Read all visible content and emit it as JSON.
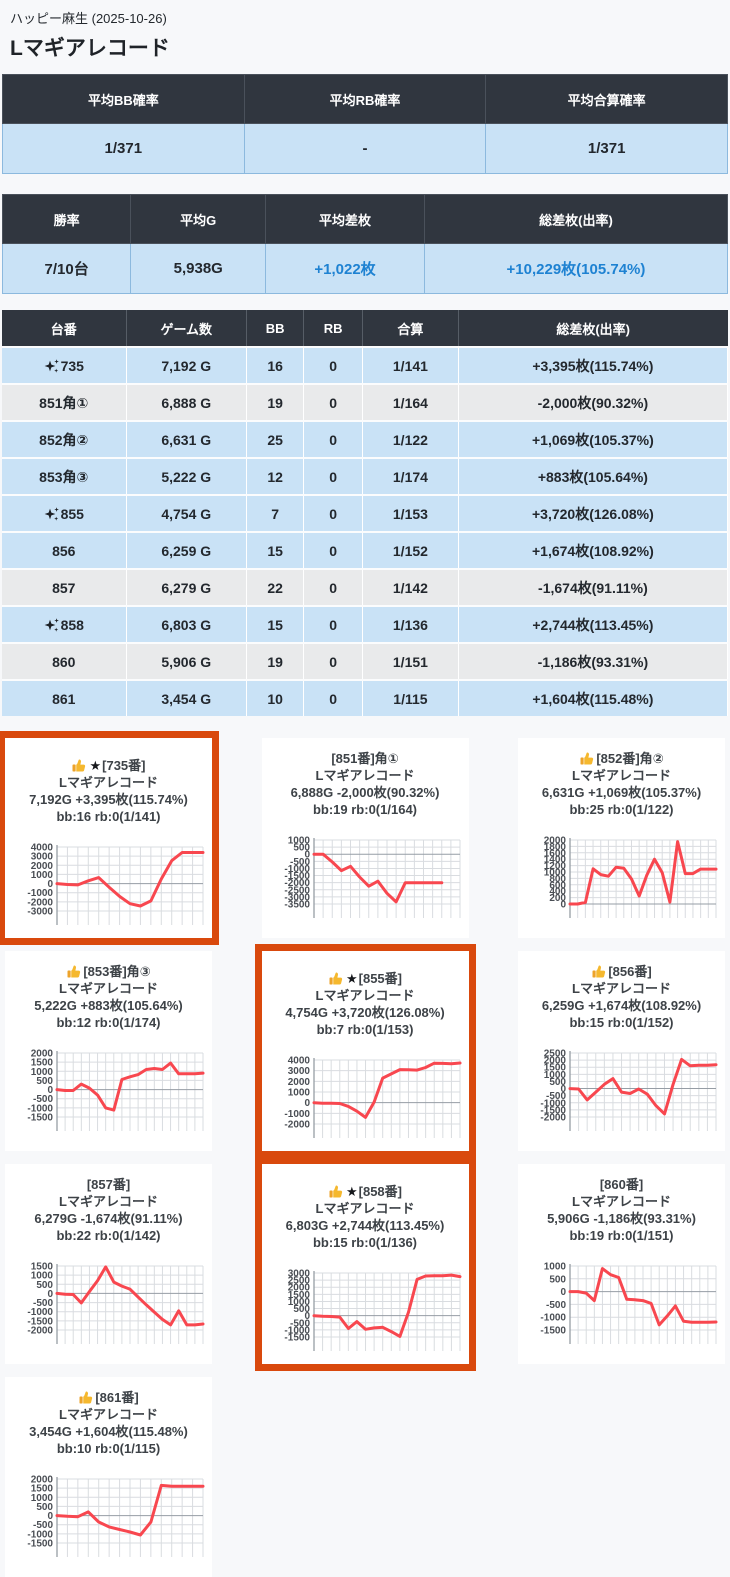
{
  "page": {
    "hall_line": "ハッピー麻生 (2025-10-26)",
    "title": "Lマギアレコード"
  },
  "icons": {
    "sparkle-icon": "✨",
    "thumbs-up-icon": "👍",
    "star-icon": "★"
  },
  "colors": {
    "header_bg": "#30363f",
    "blue_row": "#c9e2f6",
    "gray_row": "#e9eaeb",
    "blue_text": "#1e82d2",
    "highlight_border": "#d9490d",
    "chart_line": "#f8474f"
  },
  "summary_bb": {
    "headers": [
      "平均BB確率",
      "平均RB確率",
      "平均合算確率"
    ],
    "values": [
      "1/371",
      "-",
      "1/371"
    ]
  },
  "summary_overall": {
    "headers": [
      "勝率",
      "平均G",
      "平均差枚",
      "総差枚(出率)"
    ],
    "values": [
      "7/10台",
      "5,938G",
      "+1,022枚",
      "+10,229枚(105.74%)"
    ],
    "blue": [
      false,
      false,
      true,
      true
    ]
  },
  "machine_table": {
    "headers": [
      "台番",
      "ゲーム数",
      "BB",
      "RB",
      "合算",
      "総差枚(出率)"
    ],
    "rows": [
      {
        "dai": "735",
        "sparkle": true,
        "games": "7,192 G",
        "bb": "16",
        "rb": "0",
        "combined": "1/141",
        "total": "+3,395枚(115.74%)",
        "tone": "pos"
      },
      {
        "dai": "851角①",
        "sparkle": false,
        "games": "6,888 G",
        "bb": "19",
        "rb": "0",
        "combined": "1/164",
        "total": "-2,000枚(90.32%)",
        "tone": "neg"
      },
      {
        "dai": "852角②",
        "sparkle": false,
        "games": "6,631 G",
        "bb": "25",
        "rb": "0",
        "combined": "1/122",
        "total": "+1,069枚(105.37%)",
        "tone": "pos"
      },
      {
        "dai": "853角③",
        "sparkle": false,
        "games": "5,222 G",
        "bb": "12",
        "rb": "0",
        "combined": "1/174",
        "total": "+883枚(105.64%)",
        "tone": "pos"
      },
      {
        "dai": "855",
        "sparkle": true,
        "games": "4,754 G",
        "bb": "7",
        "rb": "0",
        "combined": "1/153",
        "total": "+3,720枚(126.08%)",
        "tone": "pos"
      },
      {
        "dai": "856",
        "sparkle": false,
        "games": "6,259 G",
        "bb": "15",
        "rb": "0",
        "combined": "1/152",
        "total": "+1,674枚(108.92%)",
        "tone": "pos"
      },
      {
        "dai": "857",
        "sparkle": false,
        "games": "6,279 G",
        "bb": "22",
        "rb": "0",
        "combined": "1/142",
        "total": "-1,674枚(91.11%)",
        "tone": "neg"
      },
      {
        "dai": "858",
        "sparkle": true,
        "games": "6,803 G",
        "bb": "15",
        "rb": "0",
        "combined": "1/136",
        "total": "+2,744枚(113.45%)",
        "tone": "pos"
      },
      {
        "dai": "860",
        "sparkle": false,
        "games": "5,906 G",
        "bb": "19",
        "rb": "0",
        "combined": "1/151",
        "total": "-1,186枚(93.31%)",
        "tone": "neg"
      },
      {
        "dai": "861",
        "sparkle": false,
        "games": "3,454 G",
        "bb": "10",
        "rb": "0",
        "combined": "1/115",
        "total": "+1,604枚(115.48%)",
        "tone": "pos"
      }
    ]
  },
  "chart_data": [
    {
      "type": "line",
      "machine": "735",
      "header": "[735番]",
      "thumb": true,
      "star": true,
      "highlighted": true,
      "model": "Lマギアレコード",
      "stats": "7,192G +3,395枚(115.74%)",
      "bbline": "bb:16 rb:0(1/141)",
      "ylim": [
        -3000,
        4000
      ],
      "ytick_step": 1000,
      "grid_on": true,
      "legend": "none",
      "values": [
        0,
        -100,
        -150,
        300,
        650,
        -400,
        -1400,
        -2200,
        -2450,
        -1900,
        500,
        2500,
        3400,
        3400,
        3400
      ],
      "xslots": 14
    },
    {
      "type": "line",
      "machine": "851",
      "header": "[851番]角①",
      "thumb": false,
      "star": false,
      "highlighted": false,
      "model": "Lマギアレコード",
      "stats": "6,888G -2,000枚(90.32%)",
      "bbline": "bb:19 rb:0(1/164)",
      "ylim": [
        -3500,
        1000
      ],
      "ytick_step": 500,
      "grid_on": true,
      "legend": "none",
      "values": [
        0,
        0,
        -550,
        -1150,
        -850,
        -1600,
        -2250,
        -1900,
        -2750,
        -3350,
        -2000,
        -2000,
        -2000,
        -2000,
        -2000
      ],
      "xslots": 16
    },
    {
      "type": "line",
      "machine": "852",
      "header": "[852番]角②",
      "thumb": true,
      "star": false,
      "highlighted": false,
      "model": "Lマギアレコード",
      "stats": "6,631G +1,069枚(105.37%)",
      "bbline": "bb:25 rb:0(1/122)",
      "ylim": [
        0,
        2000
      ],
      "ytick_step": 200,
      "grid_on": true,
      "legend": "none",
      "values": [
        0,
        0,
        50,
        1100,
        920,
        870,
        1150,
        1120,
        780,
        250,
        900,
        1400,
        980,
        60,
        1950,
        950,
        950,
        1090,
        1090,
        1090
      ],
      "xslots": 19
    },
    {
      "type": "line",
      "machine": "853",
      "header": "[853番]角③",
      "thumb": true,
      "star": false,
      "highlighted": false,
      "model": "Lマギアレコード",
      "stats": "5,222G +883枚(105.64%)",
      "bbline": "bb:12 rb:0(1/174)",
      "ylim": [
        -1500,
        2000
      ],
      "ytick_step": 500,
      "grid_on": true,
      "legend": "none",
      "values": [
        0,
        -50,
        -50,
        300,
        80,
        -300,
        -1000,
        -1120,
        550,
        700,
        820,
        1100,
        1150,
        1100,
        1450,
        860,
        860,
        860,
        900
      ],
      "xslots": 18
    },
    {
      "type": "line",
      "machine": "855",
      "header": "[855番]",
      "thumb": true,
      "star": true,
      "highlighted": true,
      "model": "Lマギアレコード",
      "stats": "4,754G +3,720枚(126.08%)",
      "bbline": "bb:7 rb:0(1/153)",
      "ylim": [
        -2000,
        4000
      ],
      "ytick_step": 1000,
      "grid_on": true,
      "legend": "none",
      "values": [
        0,
        -50,
        -50,
        -80,
        -350,
        -800,
        -1380,
        50,
        2300,
        2700,
        3100,
        3080,
        3050,
        3300,
        3700,
        3680,
        3650,
        3720
      ],
      "xslots": 17
    },
    {
      "type": "line",
      "machine": "856",
      "header": "[856番]",
      "thumb": true,
      "star": false,
      "highlighted": false,
      "model": "Lマギアレコード",
      "stats": "6,259G +1,674枚(108.92%)",
      "bbline": "bb:15 rb:0(1/152)",
      "ylim": [
        -2000,
        2500
      ],
      "ytick_step": 500,
      "grid_on": true,
      "legend": "none",
      "values": [
        0,
        -30,
        -800,
        -250,
        300,
        700,
        -250,
        -350,
        -30,
        -400,
        -1200,
        -1780,
        300,
        2050,
        1600,
        1640,
        1640,
        1674
      ],
      "xslots": 17
    },
    {
      "type": "line",
      "machine": "857",
      "header": "[857番]",
      "thumb": false,
      "star": false,
      "highlighted": false,
      "model": "Lマギアレコード",
      "stats": "6,279G -1,674枚(91.11%)",
      "bbline": "bb:22 rb:0(1/142)",
      "ylim": [
        -2000,
        1500
      ],
      "ytick_step": 500,
      "grid_on": true,
      "legend": "none",
      "values": [
        0,
        -40,
        -60,
        -520,
        100,
        700,
        1450,
        620,
        400,
        230,
        -200,
        -620,
        -1020,
        -1420,
        -1720,
        -950,
        -1720,
        -1720,
        -1674
      ],
      "xslots": 18
    },
    {
      "type": "line",
      "machine": "858",
      "header": "[858番]",
      "thumb": true,
      "star": true,
      "highlighted": true,
      "model": "Lマギアレコード",
      "stats": "6,803G +2,744枚(113.45%)",
      "bbline": "bb:15 rb:0(1/136)",
      "ylim": [
        -1500,
        3000
      ],
      "ytick_step": 500,
      "grid_on": true,
      "legend": "none",
      "values": [
        0,
        -40,
        -60,
        -100,
        -900,
        -420,
        -960,
        -860,
        -820,
        -1120,
        -1460,
        250,
        2550,
        2790,
        2800,
        2800,
        2850,
        2744
      ],
      "xslots": 17
    },
    {
      "type": "line",
      "machine": "860",
      "header": "[860番]",
      "thumb": false,
      "star": false,
      "highlighted": false,
      "model": "Lマギアレコード",
      "stats": "5,906G -1,186枚(93.31%)",
      "bbline": "bb:19 rb:0(1/151)",
      "ylim": [
        -1500,
        1000
      ],
      "ytick_step": 500,
      "grid_on": true,
      "legend": "none",
      "values": [
        0,
        0,
        -60,
        -350,
        900,
        660,
        550,
        -300,
        -320,
        -350,
        -460,
        -1300,
        -950,
        -560,
        -1160,
        -1200,
        -1200,
        -1200,
        -1186
      ],
      "xslots": 18
    },
    {
      "type": "line",
      "machine": "861",
      "header": "[861番]",
      "thumb": true,
      "star": false,
      "highlighted": false,
      "model": "Lマギアレコード",
      "stats": "3,454G +1,604枚(115.48%)",
      "bbline": "bb:10 rb:0(1/115)",
      "ylim": [
        -1500,
        2000
      ],
      "ytick_step": 500,
      "grid_on": true,
      "legend": "none",
      "values": [
        0,
        -40,
        -60,
        200,
        -350,
        -620,
        -760,
        -900,
        -1060,
        -350,
        1650,
        1600,
        1600,
        1600,
        1604
      ],
      "xslots": 14
    }
  ]
}
